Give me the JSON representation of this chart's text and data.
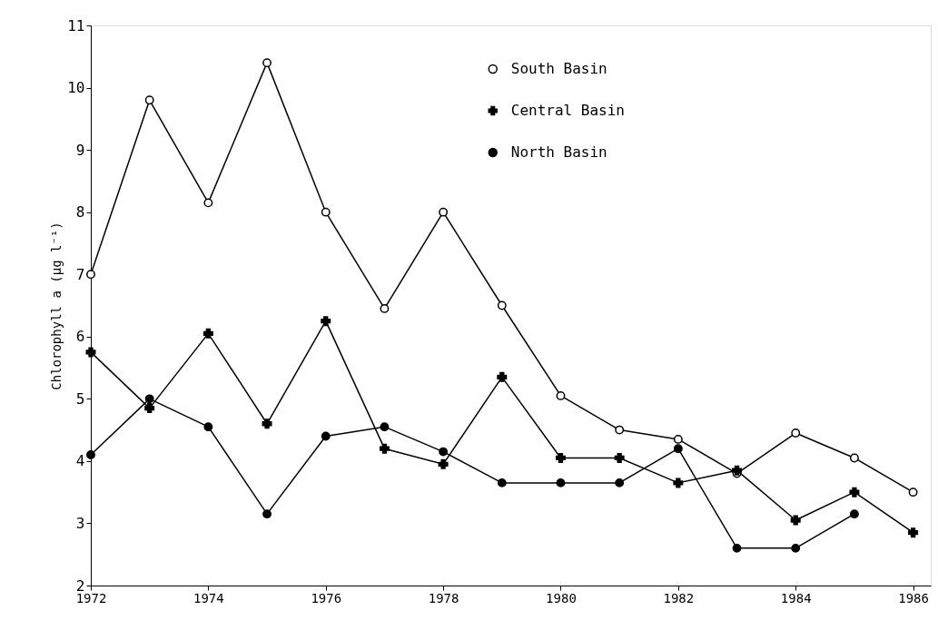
{
  "chart_data": {
    "type": "line",
    "ylabel": "Chlorophyll a (μg l⁻¹)",
    "x": [
      1972,
      1973,
      1974,
      1975,
      1976,
      1977,
      1978,
      1979,
      1980,
      1981,
      1982,
      1983,
      1984,
      1985,
      1986
    ],
    "series": [
      {
        "name": "South Basin",
        "color": "#000000",
        "marker": "circle",
        "colors": [
          "#ffffff",
          "#ffffff",
          "#ffffff",
          "#ffffff",
          "#ffffff",
          "#ffffff",
          "#ffffff",
          "#ffffff",
          "#ffffff",
          "#ffffff",
          "#ffffff",
          "#ffffff",
          "#ffffff",
          "#ffffff",
          "#ffffff"
        ],
        "values": [
          7.0,
          9.8,
          8.15,
          10.4,
          8.0,
          6.45,
          8.0,
          6.5,
          5.05,
          4.5,
          4.35,
          3.8,
          4.45,
          4.05,
          3.5
        ]
      },
      {
        "name": "Central Basin",
        "color": "#000000",
        "marker": "cross",
        "values": [
          5.75,
          4.85,
          6.05,
          4.6,
          6.25,
          4.2,
          3.95,
          5.35,
          4.05,
          4.05,
          3.65,
          3.85,
          3.05,
          3.5,
          2.85
        ]
      },
      {
        "name": "North Basin",
        "color": "#000000",
        "marker": "circle",
        "values": [
          4.1,
          5.0,
          4.55,
          3.15,
          4.4,
          4.55,
          4.15,
          3.65,
          3.65,
          3.65,
          4.2,
          2.6,
          2.6,
          3.15,
          null
        ]
      }
    ],
    "xlim": [
      1972,
      1986.3
    ],
    "xticks": [
      1972,
      1974,
      1976,
      1978,
      1980,
      1982,
      1984,
      1986
    ],
    "ylim": [
      2,
      11
    ],
    "yticks": [
      2,
      3,
      4,
      5,
      6,
      7,
      8,
      9,
      10,
      11
    ],
    "legend": "top",
    "line_style": "solid"
  }
}
